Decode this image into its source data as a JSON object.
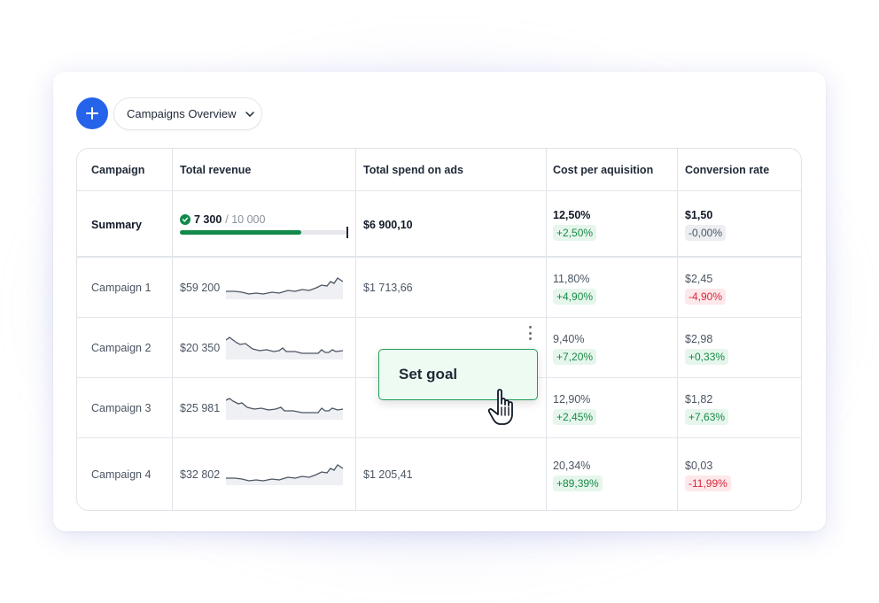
{
  "toolbar": {
    "add_icon": "plus-icon",
    "view_label": "Campaigns Overview",
    "view_icon": "chevron-down-icon",
    "accent_color": "#2563eb"
  },
  "table": {
    "headers": [
      "Campaign",
      "Total revenue",
      "Total spend on ads",
      "Cost per aquisition",
      "Conversion rate"
    ],
    "summary": {
      "label": "Summary",
      "revenue_current": "7 300",
      "revenue_goal": "/ 10 000",
      "progress": 0.73,
      "spend": "$6 900,10",
      "cpa": "12,50%",
      "cpa_delta": "+2,50%",
      "conversion": "$1,50",
      "conversion_delta": "-0,00%"
    },
    "rows": [
      {
        "name": "Campaign 1",
        "revenue": "$59 200",
        "spend": "$1 713,66",
        "cpa": "11,80%",
        "cpa_delta": "+4,90%",
        "conversion": "$2,45",
        "conversion_delta": "-4,90%"
      },
      {
        "name": "Campaign 2",
        "revenue": "$20 350",
        "spend": "",
        "cpa": "9,40%",
        "cpa_delta": "+7,20%",
        "conversion": "$2,98",
        "conversion_delta": "+0,33%"
      },
      {
        "name": "Campaign 3",
        "revenue": "$25 981",
        "spend": "",
        "cpa": "12,90%",
        "cpa_delta": "+2,45%",
        "conversion": "$1,82",
        "conversion_delta": "+7,63%"
      },
      {
        "name": "Campaign 4",
        "revenue": "$32 802",
        "spend": "$1 205,41",
        "cpa": "20,34%",
        "cpa_delta": "+89,39%",
        "conversion": "$0,03",
        "conversion_delta": "-11,99%"
      }
    ]
  },
  "popup": {
    "set_goal_label": "Set goal"
  },
  "colors": {
    "positive": "#178a46",
    "negative": "#d3283c",
    "progress": "#10894a"
  }
}
